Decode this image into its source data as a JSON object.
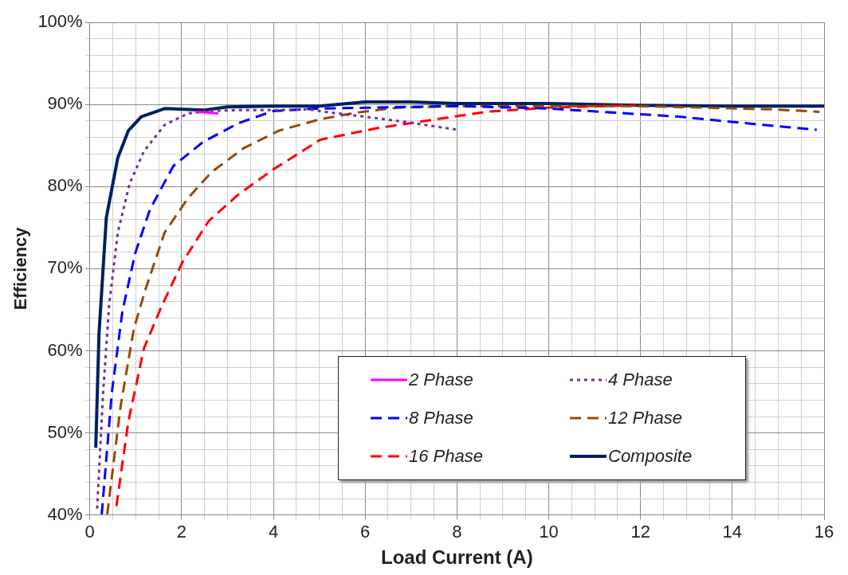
{
  "chart_data": {
    "type": "line",
    "xlabel": "Load Current (A)",
    "ylabel": "Efficiency",
    "xlim": [
      0,
      16
    ],
    "xticks": [
      0,
      {
        "value": 0.5,
        "label": null
      },
      {
        "value": 1,
        "label": null
      },
      {
        "value": 1.5,
        "label": null
      },
      2,
      {
        "value": 2.5,
        "label": null
      },
      {
        "value": 3,
        "label": null
      },
      {
        "value": 3.5,
        "label": null
      },
      4,
      {
        "value": 4.5,
        "label": null
      },
      {
        "value": 5,
        "label": null
      },
      {
        "value": 5.5,
        "label": null
      },
      6,
      {
        "value": 6.5,
        "label": null
      },
      {
        "value": 7,
        "label": null
      },
      {
        "value": 7.5,
        "label": null
      },
      8,
      {
        "value": 8.5,
        "label": null
      },
      {
        "value": 9,
        "label": null
      },
      {
        "value": 9.5,
        "label": null
      },
      10,
      {
        "value": 10.5,
        "label": null
      },
      {
        "value": 11,
        "label": null
      },
      {
        "value": 11.5,
        "label": null
      },
      12,
      {
        "value": 12.5,
        "label": null
      },
      {
        "value": 13,
        "label": null
      },
      {
        "value": 13.5,
        "label": null
      },
      14,
      {
        "value": 14.5,
        "label": null
      },
      {
        "value": 15,
        "label": null
      },
      {
        "value": 15.5,
        "label": null
      },
      16
    ],
    "ylim": [
      40,
      100
    ],
    "yticks": [
      {
        "value": 40,
        "label": "40%"
      },
      {
        "value": 42,
        "label": null
      },
      {
        "value": 44,
        "label": null
      },
      {
        "value": 46,
        "label": null
      },
      {
        "value": 48,
        "label": null
      },
      {
        "value": 50,
        "label": "50%"
      },
      {
        "value": 52,
        "label": null
      },
      {
        "value": 54,
        "label": null
      },
      {
        "value": 56,
        "label": null
      },
      {
        "value": 58,
        "label": null
      },
      {
        "value": 60,
        "label": "60%"
      },
      {
        "value": 62,
        "label": null
      },
      {
        "value": 64,
        "label": null
      },
      {
        "value": 66,
        "label": null
      },
      {
        "value": 68,
        "label": null
      },
      {
        "value": 70,
        "label": "70%"
      },
      {
        "value": 72,
        "label": null
      },
      {
        "value": 74,
        "label": null
      },
      {
        "value": 76,
        "label": null
      },
      {
        "value": 78,
        "label": null
      },
      {
        "value": 80,
        "label": "80%"
      },
      {
        "value": 82,
        "label": null
      },
      {
        "value": 84,
        "label": null
      },
      {
        "value": 86,
        "label": null
      },
      {
        "value": 88,
        "label": null
      },
      {
        "value": 90,
        "label": "90%"
      },
      {
        "value": 92,
        "label": null
      },
      {
        "value": 94,
        "label": null
      },
      {
        "value": 96,
        "label": null
      },
      {
        "value": 98,
        "label": null
      },
      {
        "value": 100,
        "label": "100%"
      }
    ],
    "grid": true,
    "legend": "bottom right",
    "marker": "none",
    "series": [
      {
        "name": "2 Phase",
        "color": "#ff00ff",
        "line_style": "solid",
        "x": [
          2.3,
          2.6,
          2.8
        ],
        "values": [
          89.1,
          89.0,
          88.9
        ]
      },
      {
        "name": "4 Phase",
        "color": "#7030a0",
        "line_style": "dotted",
        "x": [
          0.16,
          0.29,
          0.42,
          0.61,
          0.87,
          1.18,
          1.63,
          2.14,
          2.6,
          3.2,
          4.0,
          4.75,
          5.13,
          6.0,
          6.84,
          8.03
        ],
        "values": [
          40.8,
          54.9,
          65.5,
          74.4,
          80.4,
          84.3,
          87.5,
          88.9,
          89.2,
          89.3,
          89.3,
          89.4,
          89.1,
          88.5,
          87.9,
          86.9
        ]
      },
      {
        "name": "8 Phase",
        "color": "#0000ff",
        "line_style": "dashed",
        "x": [
          0.26,
          0.48,
          0.71,
          0.99,
          1.31,
          1.82,
          2.46,
          3.23,
          4.0,
          5.0,
          6.0,
          8.0,
          10.0,
          11.15,
          12.86,
          14.13,
          15.84
        ],
        "values": [
          40.1,
          54.9,
          64.8,
          71.9,
          77.2,
          82.5,
          85.4,
          87.7,
          89.2,
          89.5,
          89.6,
          89.8,
          89.5,
          89.1,
          88.5,
          87.8,
          86.9
        ]
      },
      {
        "name": "12 Phase",
        "color": "#984807",
        "line_style": "dashed",
        "x": [
          0.38,
          0.67,
          0.96,
          1.22,
          1.63,
          2.14,
          2.66,
          3.36,
          4.12,
          5.02,
          5.8,
          6.69,
          8.0,
          10.0,
          12.0,
          14.87,
          15.9
        ],
        "values": [
          40.1,
          53.2,
          62.7,
          67.6,
          74.4,
          78.6,
          81.8,
          84.7,
          86.8,
          88.2,
          89.0,
          89.6,
          89.8,
          89.8,
          89.8,
          89.4,
          89.1
        ]
      },
      {
        "name": "16 Phase",
        "color": "#ff0000",
        "line_style": "dashed",
        "x": [
          0.58,
          0.84,
          1.18,
          1.57,
          2.02,
          2.59,
          3.23,
          4.0,
          5.02,
          6.25,
          7.43,
          8.63,
          9.96,
          11.9
        ],
        "values": [
          41.1,
          51.4,
          60.3,
          65.5,
          70.8,
          75.8,
          79.0,
          82.1,
          85.7,
          87.1,
          88.1,
          89.1,
          89.6,
          89.9
        ]
      },
      {
        "name": "Composite",
        "color": "#002060",
        "line_style": "solid",
        "x": [
          0.13,
          0.2,
          0.36,
          0.61,
          0.84,
          1.12,
          1.63,
          2.5,
          3.0,
          4.0,
          5.0,
          6.0,
          7.0,
          8.0,
          10.0,
          12.0,
          14.0,
          16.0
        ],
        "values": [
          48.2,
          62.0,
          76.2,
          83.5,
          86.8,
          88.5,
          89.5,
          89.3,
          89.7,
          89.8,
          89.8,
          90.3,
          90.3,
          90.1,
          90.1,
          89.9,
          89.8,
          89.8
        ]
      }
    ]
  }
}
